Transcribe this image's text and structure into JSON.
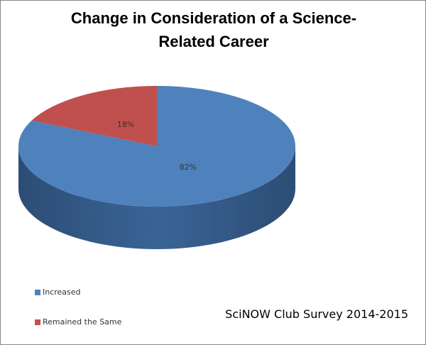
{
  "chart_data": {
    "type": "pie",
    "title": "Change in Consideration of a Science-Related Career",
    "categories": [
      "Increased",
      "Remained the Same"
    ],
    "values": [
      82,
      18
    ],
    "value_labels": [
      "82%",
      "18%"
    ],
    "colors": [
      "#4f81bd",
      "#c0504d"
    ],
    "annotation": "SciNOW Club Survey 2014-2015",
    "legend": "bottom-left"
  }
}
